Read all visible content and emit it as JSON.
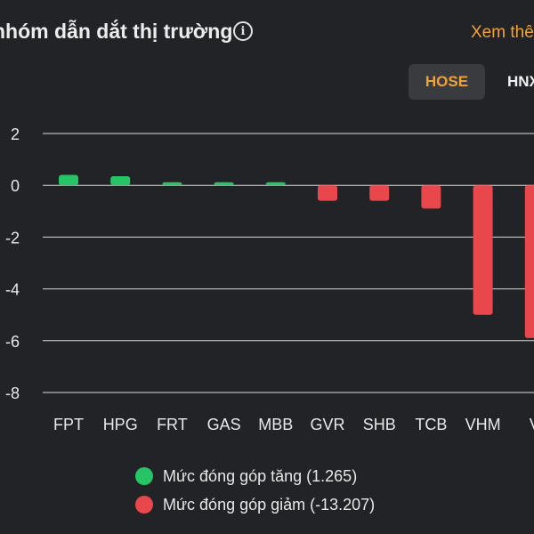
{
  "header": {
    "title": "nhóm dẫn dắt thị trường",
    "info_icon": "info-circle-icon",
    "see_more_label": "Xem thêm"
  },
  "tabs": [
    {
      "label": "HOSE",
      "active": true
    },
    {
      "label": "HNX",
      "active": false
    }
  ],
  "colors": {
    "positive": "#27c465",
    "negative": "#e8474c",
    "accent": "#f0a23a",
    "background": "#222327"
  },
  "chart_data": {
    "type": "bar",
    "categories": [
      "FPT",
      "HPG",
      "FRT",
      "GAS",
      "MBB",
      "GVR",
      "SHB",
      "TCB",
      "VHM",
      "VIC"
    ],
    "category_labels": [
      "FPT",
      "HPG",
      "FRT",
      "GAS",
      "MBB",
      "GVR",
      "SHB",
      "TCB",
      "VHM",
      "V"
    ],
    "values": [
      0.4,
      0.35,
      0.12,
      0.12,
      0.12,
      -0.6,
      -0.6,
      -0.9,
      -5.0,
      -5.9
    ],
    "ylim": [
      -8,
      2
    ],
    "yticks": [
      "2",
      "0",
      "-2",
      "-4",
      "-6",
      "-8"
    ],
    "grid": true,
    "legend": [
      {
        "label": "Mức đóng góp tăng (1.265)",
        "color": "#27c465"
      },
      {
        "label": "Mức đóng góp giảm (-13.207)",
        "color": "#e8474c"
      }
    ],
    "legend_position": "bottom"
  }
}
